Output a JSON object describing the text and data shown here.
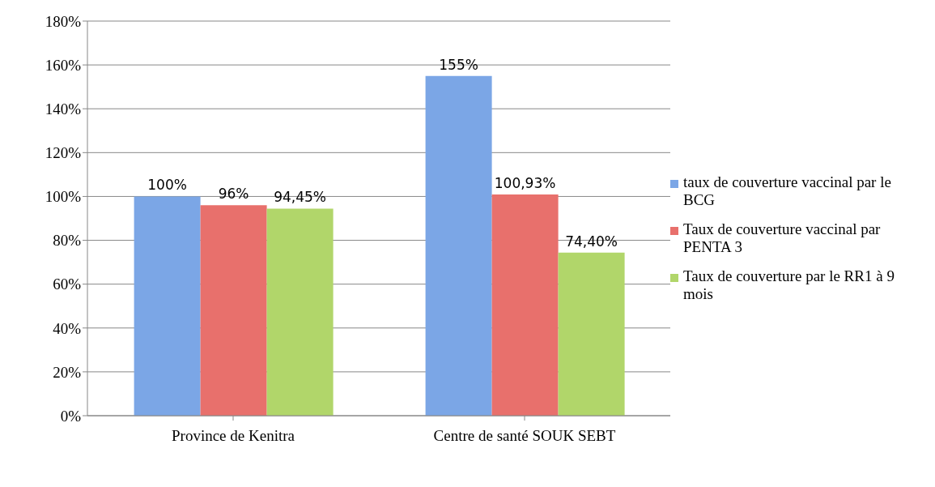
{
  "chart_data": {
    "type": "bar",
    "categories": [
      "Province de Kenitra",
      "Centre de santé SOUK SEBT"
    ],
    "series": [
      {
        "name": "taux de couverture vaccinal par le BCG",
        "color": "#7ba6e6",
        "values": [
          100,
          155
        ],
        "value_labels": [
          "100%",
          "155%"
        ]
      },
      {
        "name": "Taux de couverture vaccinal par PENTA 3",
        "color": "#e8706c",
        "values": [
          96,
          100.93
        ],
        "value_labels": [
          "96%",
          "100,93%"
        ]
      },
      {
        "name": "Taux de couverture par le RR1 à 9 mois",
        "color": "#b1d66a",
        "values": [
          94.45,
          74.4
        ],
        "value_labels": [
          "94,45%",
          "74,40%"
        ]
      }
    ],
    "ylim": [
      0,
      180
    ],
    "yticks": [
      {
        "value": 0,
        "label": "0%"
      },
      {
        "value": 20,
        "label": "20%"
      },
      {
        "value": 40,
        "label": "40%"
      },
      {
        "value": 60,
        "label": "60%"
      },
      {
        "value": 80,
        "label": "80%"
      },
      {
        "value": 100,
        "label": "100%"
      },
      {
        "value": 120,
        "label": "120%"
      },
      {
        "value": 140,
        "label": "140%"
      },
      {
        "value": 160,
        "label": "160%"
      },
      {
        "value": 180,
        "label": "180%"
      }
    ],
    "grid": "y",
    "legend": "right"
  }
}
